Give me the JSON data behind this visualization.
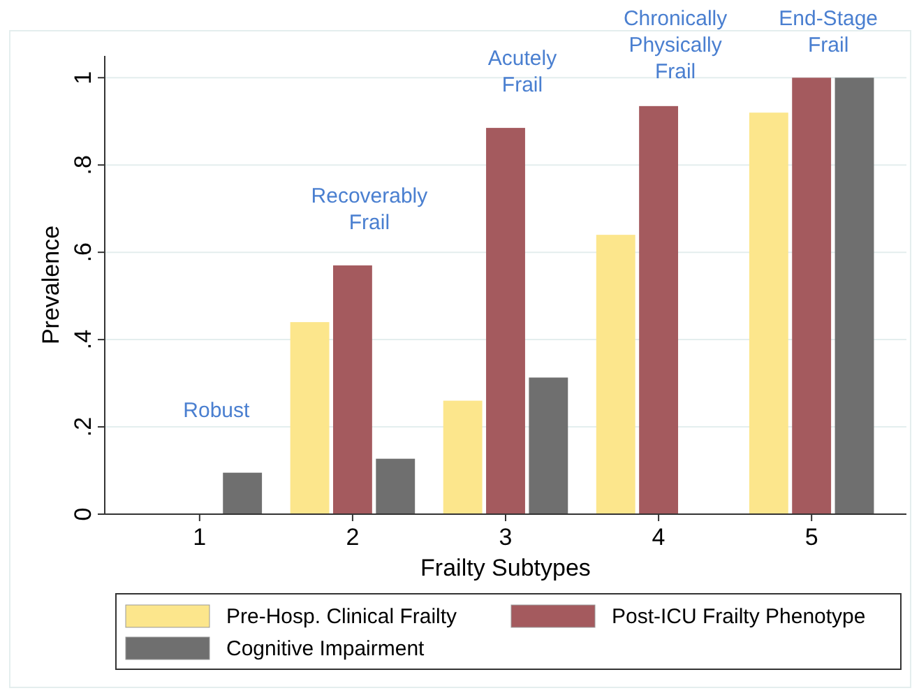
{
  "chart_data": {
    "type": "bar",
    "xlabel": "Frailty Subtypes",
    "ylabel": "Prevalence",
    "categories": [
      "1",
      "2",
      "3",
      "4",
      "5"
    ],
    "series": [
      {
        "name": "Pre-Hosp. Clinical Frailty",
        "color": "#fce68c",
        "values": [
          0,
          0.44,
          0.26,
          0.64,
          0.92
        ]
      },
      {
        "name": "Post-ICU Frailty Phenotype",
        "color": "#a45a5e",
        "values": [
          0,
          0.57,
          0.885,
          0.935,
          1
        ]
      },
      {
        "name": "Cognitive Impairment",
        "color": "#6f6f6f",
        "values": [
          0.095,
          0.127,
          0.313,
          null,
          1
        ]
      }
    ],
    "ylim": [
      0,
      1.05
    ],
    "yticks": [
      {
        "value": 0,
        "label": "0"
      },
      {
        "value": 0.2,
        "label": ".2"
      },
      {
        "value": 0.4,
        "label": ".4"
      },
      {
        "value": 0.6,
        "label": ".6"
      },
      {
        "value": 0.8,
        "label": ".8"
      },
      {
        "value": 1,
        "label": "1"
      }
    ],
    "grid": "y",
    "legend": "bottom",
    "annotations": [
      "Robust",
      "Recoverably\nFrail",
      "Acutely\nFrail",
      "Chronically\nPhysically\nFrail",
      "End-Stage\nFrail"
    ]
  }
}
